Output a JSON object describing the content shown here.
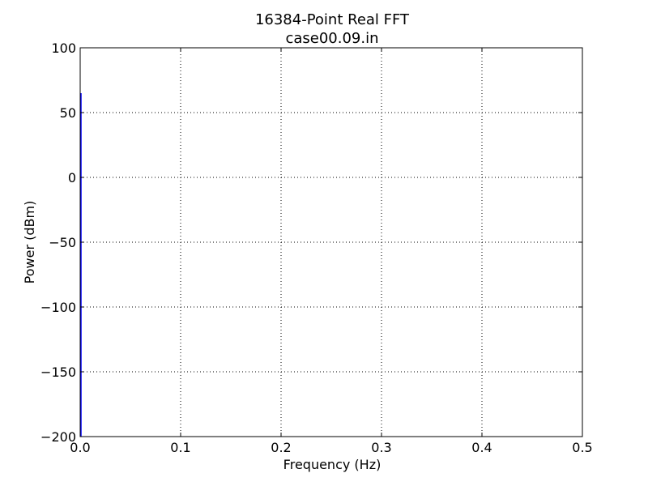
{
  "chart_data": {
    "type": "line",
    "title": "16384-Point Real FFT",
    "subtitle": "case00.09.in",
    "xlabel": "Frequency (Hz)",
    "ylabel": "Power (dBm)",
    "xlim": [
      0.0,
      0.5
    ],
    "ylim": [
      -200,
      100
    ],
    "x_ticks": [
      0.0,
      0.1,
      0.2,
      0.3,
      0.4,
      0.5
    ],
    "x_tick_labels": [
      "0.0",
      "0.1",
      "0.2",
      "0.3",
      "0.4",
      "0.5"
    ],
    "y_ticks": [
      100,
      50,
      0,
      -50,
      -100,
      -150,
      -200
    ],
    "y_tick_labels": [
      "100",
      "50",
      "0",
      "−50",
      "−100",
      "−150",
      "−200"
    ],
    "grid": true,
    "series": [
      {
        "color": "#0000ff",
        "x": [
          0.0,
          0.0,
          0.0
        ],
        "y": [
          -200,
          65,
          -200
        ]
      }
    ]
  }
}
